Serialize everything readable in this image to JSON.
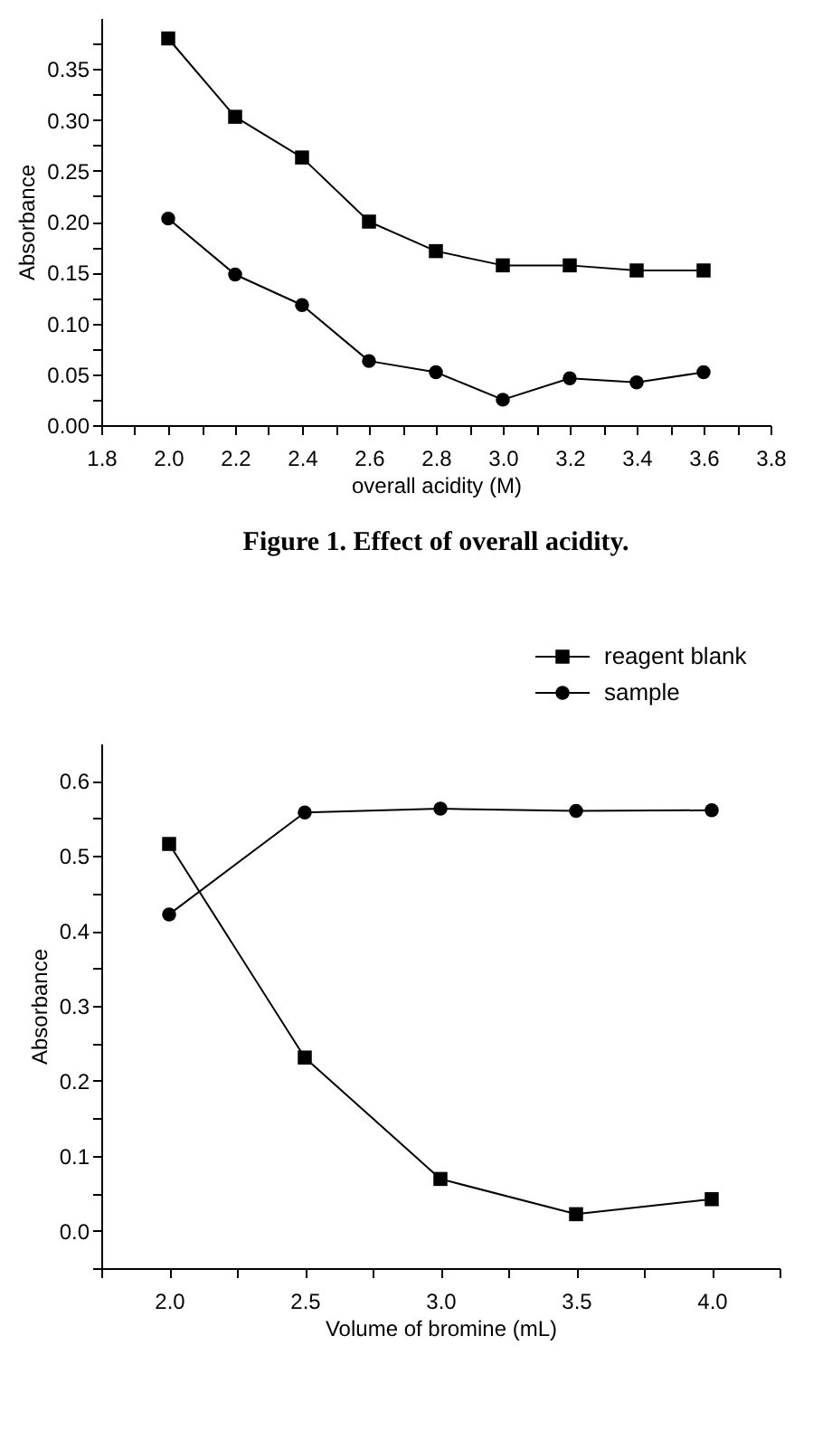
{
  "chart_data": [
    {
      "type": "line",
      "title": "Figure 1. Effect of overall acidity.",
      "xlabel": "overall acidity (M)",
      "ylabel": "Absorbance",
      "x": [
        2.0,
        2.2,
        2.4,
        2.6,
        2.8,
        3.0,
        3.2,
        3.4,
        3.6
      ],
      "series": [
        {
          "color": "#000000",
          "marker": "square",
          "values": [
            0.38,
            0.303,
            0.263,
            0.2,
            0.171,
            0.157,
            0.157,
            0.152,
            0.152
          ]
        },
        {
          "color": "#000000",
          "marker": "circle",
          "values": [
            0.203,
            0.148,
            0.118,
            0.063,
            0.052,
            0.025,
            0.046,
            0.042,
            0.052
          ]
        }
      ],
      "xlim": [
        1.8,
        3.8
      ],
      "ylim": [
        0,
        0.4
      ],
      "xticks": [
        {
          "value": 1.8,
          "label": "1.8"
        },
        {
          "value": 1.9,
          "label": null
        },
        {
          "value": 2.0,
          "label": "2.0"
        },
        {
          "value": 2.1,
          "label": null
        },
        {
          "value": 2.2,
          "label": "2.2"
        },
        {
          "value": 2.3,
          "label": null
        },
        {
          "value": 2.4,
          "label": "2.4"
        },
        {
          "value": 2.5,
          "label": null
        },
        {
          "value": 2.6,
          "label": "2.6"
        },
        {
          "value": 2.7,
          "label": null
        },
        {
          "value": 2.8,
          "label": "2.8"
        },
        {
          "value": 2.9,
          "label": null
        },
        {
          "value": 3.0,
          "label": "3.0"
        },
        {
          "value": 3.1,
          "label": null
        },
        {
          "value": 3.2,
          "label": "3.2"
        },
        {
          "value": 3.3,
          "label": null
        },
        {
          "value": 3.4,
          "label": "3.4"
        },
        {
          "value": 3.5,
          "label": null
        },
        {
          "value": 3.6,
          "label": "3.6"
        },
        {
          "value": 3.7,
          "label": null
        },
        {
          "value": 3.8,
          "label": "3.8"
        }
      ],
      "yticks": [
        {
          "value": 0,
          "label": "0.00"
        },
        {
          "value": 0.025,
          "label": null
        },
        {
          "value": 0.05,
          "label": "0.05"
        },
        {
          "value": 0.075,
          "label": null
        },
        {
          "value": 0.1,
          "label": "0.10"
        },
        {
          "value": 0.125,
          "label": null
        },
        {
          "value": 0.15,
          "label": "0.15"
        },
        {
          "value": 0.175,
          "label": null
        },
        {
          "value": 0.2,
          "label": "0.20"
        },
        {
          "value": 0.225,
          "label": null
        },
        {
          "value": 0.25,
          "label": "0.25"
        },
        {
          "value": 0.275,
          "label": null
        },
        {
          "value": 0.3,
          "label": "0.30"
        },
        {
          "value": 0.325,
          "label": null
        },
        {
          "value": 0.35,
          "label": "0.35"
        },
        {
          "value": 0.375,
          "label": null
        }
      ],
      "grid": false,
      "line_style": "solid"
    },
    {
      "type": "line",
      "xlabel": "Volume of bromine (mL)",
      "ylabel": "Absorbance",
      "x": [
        2.0,
        2.5,
        3.0,
        3.5,
        4.0
      ],
      "series": [
        {
          "name": "reagent blank",
          "color": "#000000",
          "marker": "square",
          "values": [
            0.516,
            0.231,
            0.069,
            0.022,
            0.042
          ]
        },
        {
          "name": "sample",
          "color": "#000000",
          "marker": "circle",
          "values": [
            0.422,
            0.558,
            0.563,
            0.56,
            0.561
          ]
        }
      ],
      "xlim": [
        1.75,
        4.25
      ],
      "ylim": [
        -0.05,
        0.65
      ],
      "xticks": [
        {
          "value": 1.75,
          "label": null
        },
        {
          "value": 2.0,
          "label": "2.0"
        },
        {
          "value": 2.25,
          "label": null
        },
        {
          "value": 2.5,
          "label": "2.5"
        },
        {
          "value": 2.75,
          "label": null
        },
        {
          "value": 3.0,
          "label": "3.0"
        },
        {
          "value": 3.25,
          "label": null
        },
        {
          "value": 3.5,
          "label": "3.5"
        },
        {
          "value": 3.75,
          "label": null
        },
        {
          "value": 4.0,
          "label": "4.0"
        },
        {
          "value": 4.25,
          "label": null
        }
      ],
      "yticks": [
        {
          "value": -0.05,
          "label": null
        },
        {
          "value": 0,
          "label": "0.0"
        },
        {
          "value": 0.05,
          "label": null
        },
        {
          "value": 0.1,
          "label": "0.1"
        },
        {
          "value": 0.15,
          "label": null
        },
        {
          "value": 0.2,
          "label": "0.2"
        },
        {
          "value": 0.25,
          "label": null
        },
        {
          "value": 0.3,
          "label": "0.3"
        },
        {
          "value": 0.35,
          "label": null
        },
        {
          "value": 0.4,
          "label": "0.4"
        },
        {
          "value": 0.45,
          "label": null
        },
        {
          "value": 0.5,
          "label": "0.5"
        },
        {
          "value": 0.55,
          "label": null
        },
        {
          "value": 0.6,
          "label": "0.6"
        }
      ],
      "grid": false,
      "legend": "top right",
      "line_style": "solid"
    }
  ]
}
